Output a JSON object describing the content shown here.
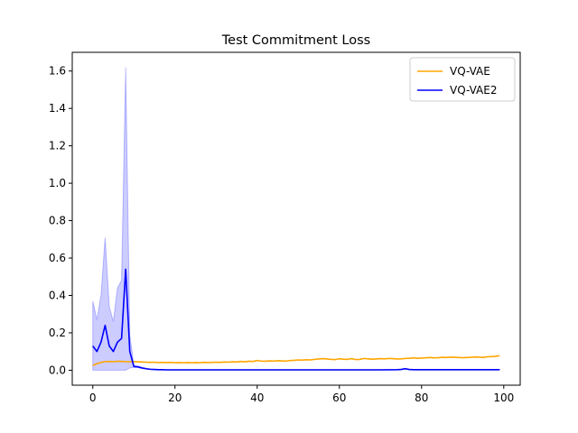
{
  "chart_data": {
    "type": "line",
    "title": "Test Commitment Loss",
    "xlabel": "",
    "ylabel": "",
    "xlim": [
      -5,
      104
    ],
    "ylim": [
      -0.08,
      1.7
    ],
    "xticks": [
      0,
      20,
      40,
      60,
      80,
      100
    ],
    "yticks": [
      0.0,
      0.2,
      0.4,
      0.6,
      0.8,
      1.0,
      1.2,
      1.4,
      1.6
    ],
    "grid": false,
    "legend_position": "top-right",
    "series": [
      {
        "name": "VQ-VAE",
        "color": "#ffa500",
        "x": [
          0,
          1,
          2,
          3,
          4,
          5,
          6,
          7,
          8,
          9,
          10,
          11,
          12,
          13,
          14,
          15,
          16,
          17,
          18,
          19,
          20,
          21,
          22,
          23,
          24,
          25,
          26,
          27,
          28,
          29,
          30,
          31,
          32,
          33,
          34,
          35,
          36,
          37,
          38,
          39,
          40,
          41,
          42,
          43,
          44,
          45,
          46,
          47,
          48,
          49,
          50,
          51,
          52,
          53,
          54,
          55,
          56,
          57,
          58,
          59,
          60,
          61,
          62,
          63,
          64,
          65,
          66,
          67,
          68,
          69,
          70,
          71,
          72,
          73,
          74,
          75,
          76,
          77,
          78,
          79,
          80,
          81,
          82,
          83,
          84,
          85,
          86,
          87,
          88,
          89,
          90,
          91,
          92,
          93,
          94,
          95,
          96,
          97,
          98,
          99
        ],
        "y": [
          0.025,
          0.035,
          0.042,
          0.046,
          0.047,
          0.046,
          0.048,
          0.047,
          0.046,
          0.045,
          0.046,
          0.045,
          0.044,
          0.043,
          0.042,
          0.043,
          0.041,
          0.042,
          0.041,
          0.042,
          0.04,
          0.041,
          0.04,
          0.041,
          0.04,
          0.041,
          0.04,
          0.042,
          0.041,
          0.042,
          0.043,
          0.042,
          0.044,
          0.043,
          0.045,
          0.044,
          0.047,
          0.045,
          0.048,
          0.047,
          0.052,
          0.049,
          0.048,
          0.05,
          0.049,
          0.051,
          0.05,
          0.049,
          0.052,
          0.053,
          0.055,
          0.054,
          0.056,
          0.055,
          0.058,
          0.06,
          0.062,
          0.06,
          0.058,
          0.057,
          0.061,
          0.059,
          0.058,
          0.062,
          0.057,
          0.058,
          0.063,
          0.061,
          0.059,
          0.06,
          0.062,
          0.061,
          0.063,
          0.062,
          0.06,
          0.061,
          0.063,
          0.064,
          0.066,
          0.064,
          0.065,
          0.066,
          0.068,
          0.066,
          0.067,
          0.069,
          0.068,
          0.07,
          0.069,
          0.068,
          0.067,
          0.068,
          0.069,
          0.071,
          0.07,
          0.068,
          0.072,
          0.073,
          0.074,
          0.078
        ]
      },
      {
        "name": "VQ-VAE2",
        "color": "#0000ff",
        "x": [
          0,
          1,
          2,
          3,
          4,
          5,
          6,
          7,
          8,
          9,
          10,
          11,
          12,
          13,
          14,
          15,
          16,
          17,
          18,
          19,
          20,
          25,
          30,
          40,
          50,
          60,
          70,
          74,
          75,
          76,
          77,
          78,
          80,
          90,
          99
        ],
        "y": [
          0.13,
          0.1,
          0.15,
          0.24,
          0.13,
          0.1,
          0.15,
          0.17,
          0.54,
          0.1,
          0.02,
          0.018,
          0.012,
          0.008,
          0.005,
          0.004,
          0.003,
          0.003,
          0.002,
          0.002,
          0.002,
          0.002,
          0.002,
          0.002,
          0.002,
          0.002,
          0.002,
          0.003,
          0.004,
          0.008,
          0.004,
          0.003,
          0.003,
          0.003,
          0.003
        ]
      }
    ],
    "bands": [
      {
        "series": "VQ-VAE2",
        "color": "#0000ff",
        "opacity": 0.2,
        "x": [
          0,
          1,
          2,
          3,
          4,
          5,
          6,
          7,
          8,
          9,
          10,
          11,
          12,
          13,
          14,
          15,
          16,
          17,
          18,
          19,
          20,
          25,
          30,
          40,
          50,
          60,
          70,
          74,
          75,
          76,
          77,
          78,
          80,
          90,
          99
        ],
        "upper": [
          0.37,
          0.27,
          0.4,
          0.71,
          0.34,
          0.26,
          0.44,
          0.48,
          1.62,
          0.19,
          0.025,
          0.022,
          0.015,
          0.01,
          0.007,
          0.005,
          0.004,
          0.004,
          0.003,
          0.003,
          0.003,
          0.003,
          0.003,
          0.003,
          0.003,
          0.003,
          0.003,
          0.004,
          0.005,
          0.011,
          0.005,
          0.004,
          0.004,
          0.004,
          0.004
        ],
        "lower": [
          0.0,
          0.0,
          0.0,
          0.0,
          0.0,
          0.0,
          0.0,
          0.0,
          0.0,
          0.012,
          0.015,
          0.014,
          0.009,
          0.006,
          0.004,
          0.003,
          0.002,
          0.002,
          0.001,
          0.001,
          0.001,
          0.001,
          0.001,
          0.001,
          0.001,
          0.001,
          0.001,
          0.002,
          0.003,
          0.005,
          0.003,
          0.002,
          0.002,
          0.002,
          0.002
        ]
      }
    ]
  }
}
